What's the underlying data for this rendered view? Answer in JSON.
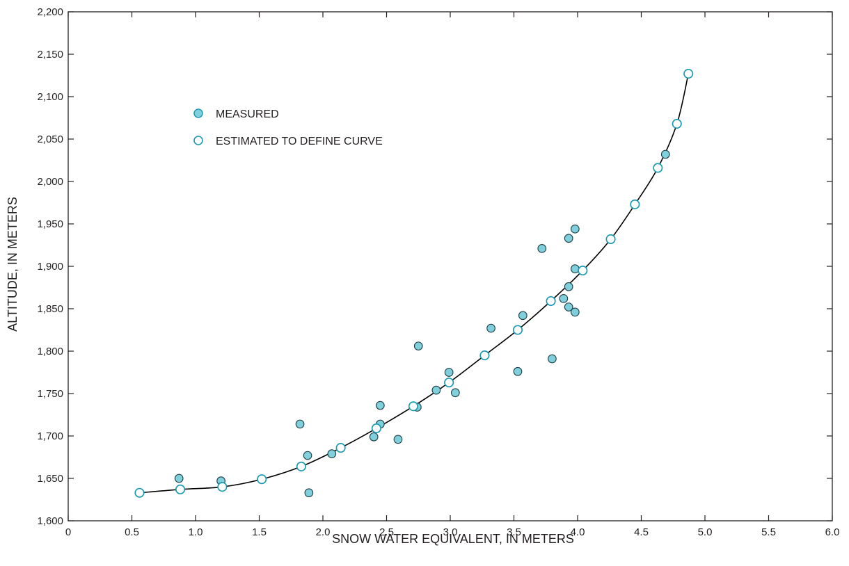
{
  "chart_data": {
    "type": "scatter",
    "title": "",
    "xlabel": "SNOW WATER EQUIVALENT, IN METERS",
    "ylabel": "ALTITUDE, IN METERS",
    "xlim": [
      0,
      6.0
    ],
    "ylim": [
      1600,
      2200
    ],
    "x_ticks": [
      0,
      0.5,
      1.0,
      1.5,
      2.0,
      2.5,
      3.0,
      3.5,
      4.0,
      4.5,
      5.0,
      5.5,
      6.0
    ],
    "x_tick_labels": [
      "0",
      "0.5",
      "1.0",
      "1.5",
      "2.0",
      "2.5",
      "3.0",
      "3.5",
      "4.0",
      "4.5",
      "5.0",
      "5.5",
      "6.0"
    ],
    "y_ticks": [
      1600,
      1650,
      1700,
      1750,
      1800,
      1850,
      1900,
      1950,
      2000,
      2050,
      2100,
      2150,
      2200
    ],
    "y_tick_labels": [
      "1,600",
      "1,650",
      "1,700",
      "1,750",
      "1,800",
      "1,850",
      "1,900",
      "1,950",
      "2,000",
      "2,050",
      "2,100",
      "2,150",
      "2,200"
    ],
    "grid": false,
    "legend_position": "upper-left",
    "colors": {
      "marker_edge": "#1a9bb3",
      "measured_fill": "#7fd0dc",
      "estimated_fill": "#ffffff",
      "line": "#000000",
      "text": "#231f20"
    },
    "series": [
      {
        "name": "MEASURED",
        "marker": "filled-circle",
        "x": [
          0.87,
          1.2,
          1.82,
          1.88,
          1.89,
          2.07,
          2.4,
          2.45,
          2.45,
          2.59,
          2.74,
          2.75,
          2.89,
          2.99,
          3.04,
          3.32,
          3.53,
          3.57,
          3.72,
          3.8,
          3.89,
          3.93,
          3.93,
          3.93,
          3.98,
          3.98,
          3.98,
          4.69
        ],
        "y": [
          1650,
          1647,
          1714,
          1677,
          1633,
          1679,
          1699,
          1714,
          1736,
          1696,
          1734,
          1806,
          1754,
          1775,
          1751,
          1827,
          1776,
          1842,
          1921,
          1791,
          1862,
          1933,
          1876,
          1852,
          1944,
          1897,
          1846,
          2032
        ]
      },
      {
        "name": "ESTIMATED TO DEFINE CURVE",
        "marker": "open-circle",
        "x": [
          0.56,
          0.88,
          1.21,
          1.52,
          1.83,
          2.14,
          2.42,
          2.71,
          2.99,
          3.27,
          3.53,
          3.79,
          4.04,
          4.26,
          4.45,
          4.63,
          4.78,
          4.87
        ],
        "y": [
          1633,
          1637,
          1640,
          1649,
          1664,
          1686,
          1709,
          1735,
          1763,
          1795,
          1825,
          1859,
          1895,
          1932,
          1973,
          2016,
          2068,
          2127
        ]
      }
    ],
    "curve": {
      "x": [
        0.56,
        0.88,
        1.21,
        1.52,
        1.83,
        2.14,
        2.42,
        2.71,
        2.99,
        3.27,
        3.53,
        3.79,
        4.04,
        4.26,
        4.45,
        4.63,
        4.78,
        4.87
      ],
      "y": [
        1633,
        1637,
        1640,
        1649,
        1664,
        1686,
        1709,
        1735,
        1763,
        1795,
        1825,
        1859,
        1895,
        1932,
        1973,
        2016,
        2068,
        2127
      ]
    }
  }
}
